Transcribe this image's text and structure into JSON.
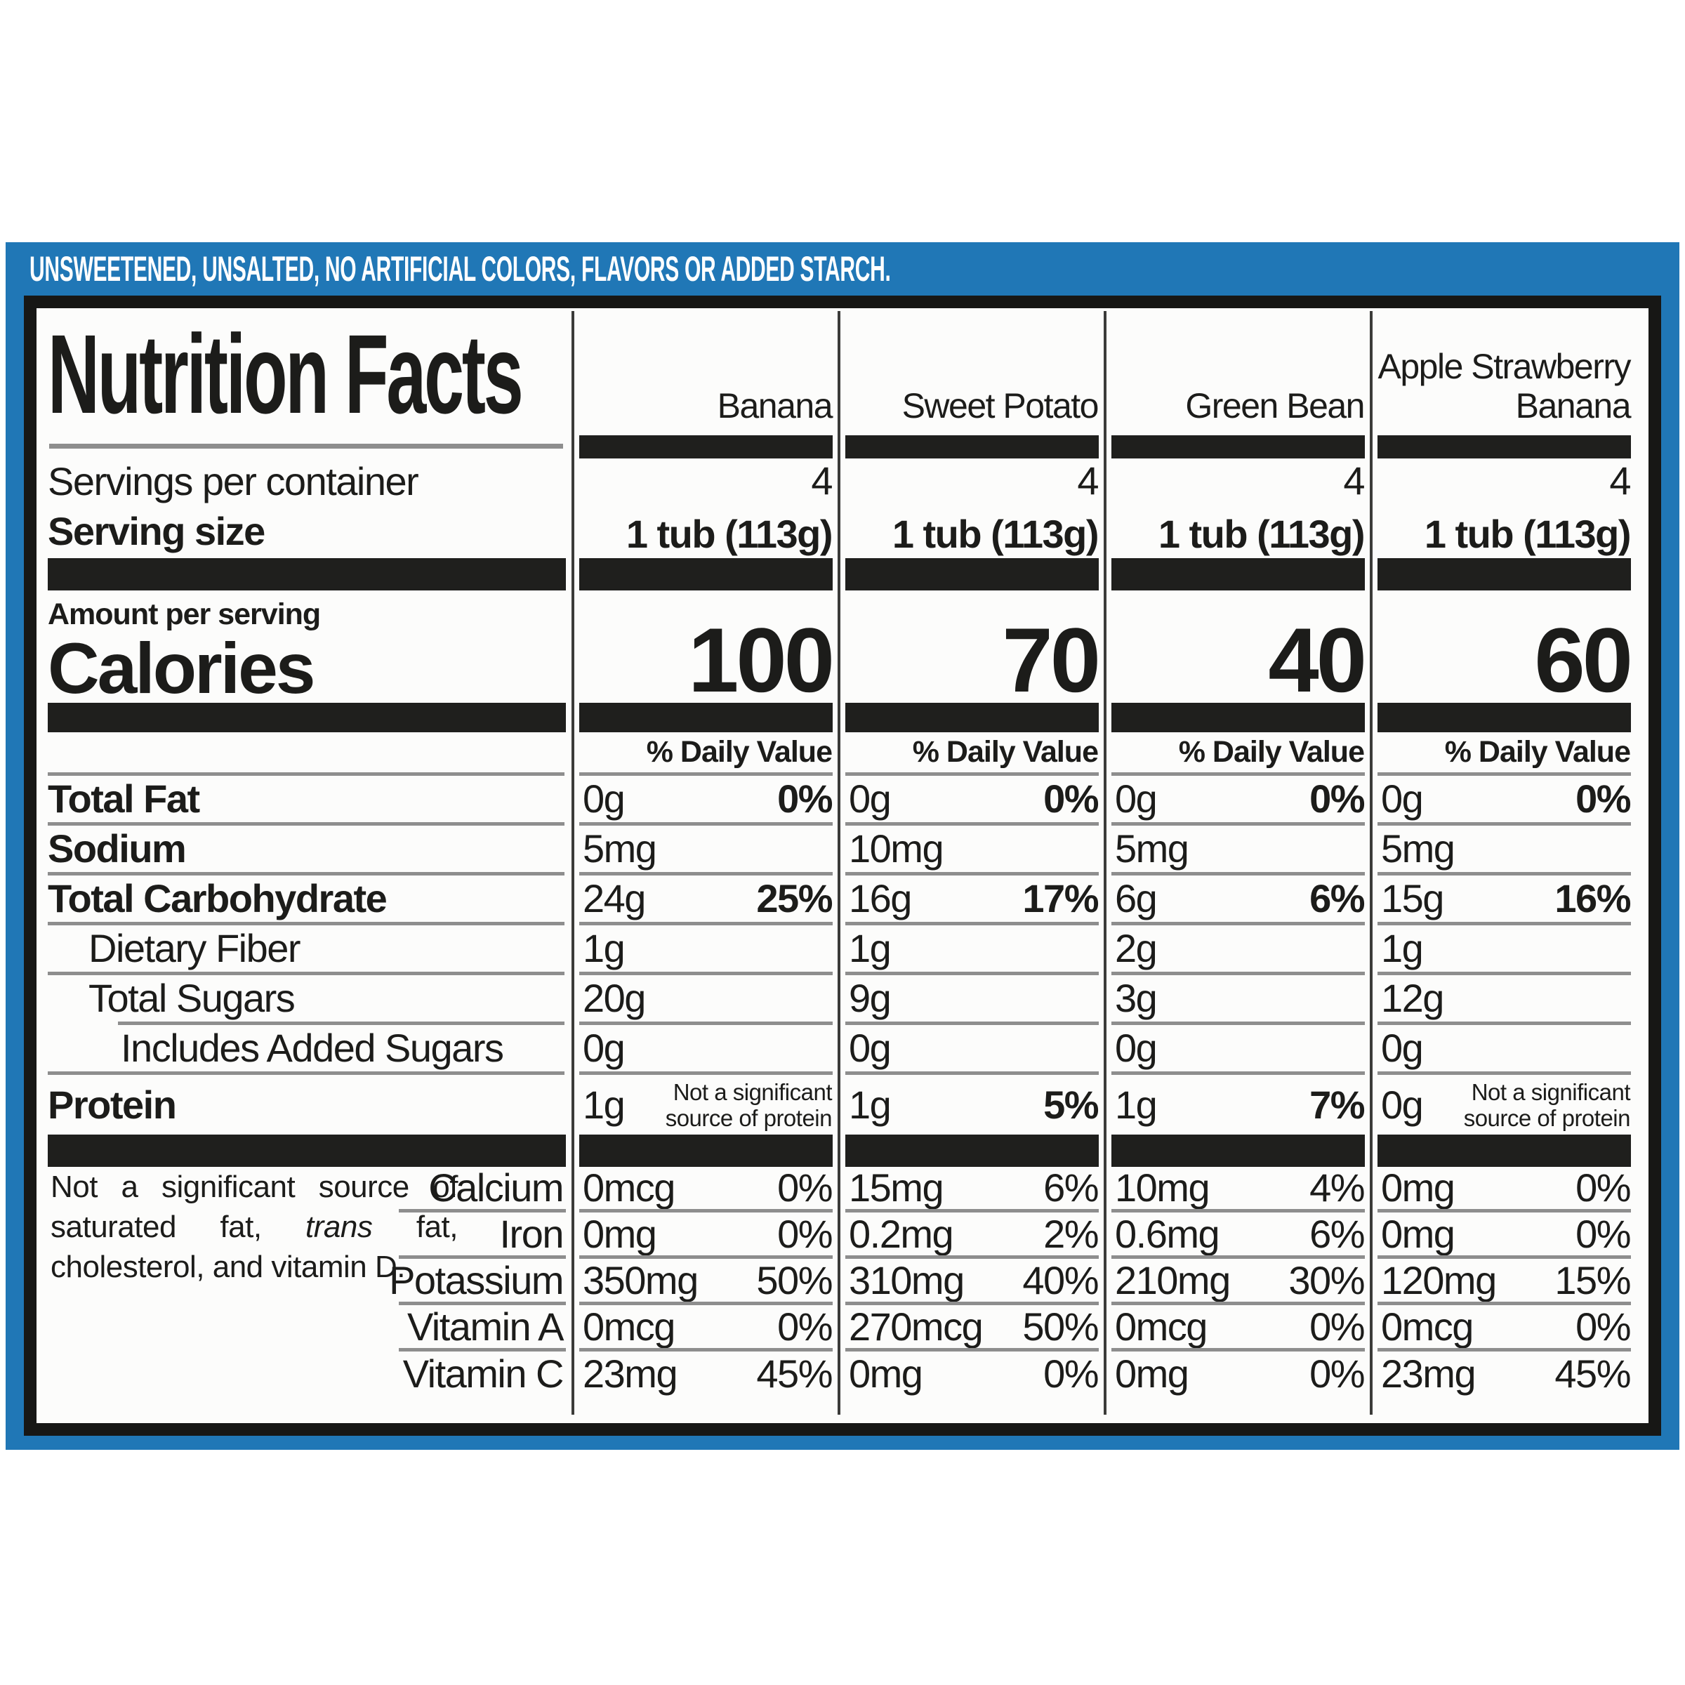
{
  "banner": {
    "text": "UNSWEETENED, UNSALTED, NO ARTIFICIAL COLORS, FLAVORS OR ADDED STARCH."
  },
  "title": "Nutrition Facts",
  "labels": {
    "servings_per_container": "Servings per container",
    "serving_size": "Serving size",
    "amount_per_serving": "Amount per serving",
    "calories": "Calories",
    "daily_value": "% Daily Value"
  },
  "columns": [
    {
      "name": "Banana",
      "servings": "4",
      "serving_size": "1 tub (113g)",
      "calories": "100"
    },
    {
      "name": "Sweet Potato",
      "servings": "4",
      "serving_size": "1 tub (113g)",
      "calories": "70"
    },
    {
      "name": "Green Bean",
      "servings": "4",
      "serving_size": "1 tub (113g)",
      "calories": "40"
    },
    {
      "name": "Apple Strawberry\nBanana",
      "servings": "4",
      "serving_size": "1 tub (113g)",
      "calories": "60"
    }
  ],
  "nutrients": [
    {
      "label": "Total Fat",
      "bold": true,
      "indent": 0,
      "hr_indent": false,
      "cells": [
        {
          "v": "0g",
          "p": "0%"
        },
        {
          "v": "0g",
          "p": "0%"
        },
        {
          "v": "0g",
          "p": "0%"
        },
        {
          "v": "0g",
          "p": "0%"
        }
      ]
    },
    {
      "label": "Sodium",
      "bold": true,
      "indent": 0,
      "hr_indent": false,
      "cells": [
        {
          "v": "5mg"
        },
        {
          "v": "10mg"
        },
        {
          "v": "5mg"
        },
        {
          "v": "5mg"
        }
      ]
    },
    {
      "label": "Total Carbohydrate",
      "bold": true,
      "indent": 0,
      "hr_indent": false,
      "cells": [
        {
          "v": "24g",
          "p": "25%"
        },
        {
          "v": "16g",
          "p": "17%"
        },
        {
          "v": "6g",
          "p": "6%"
        },
        {
          "v": "15g",
          "p": "16%"
        }
      ]
    },
    {
      "label": "Dietary Fiber",
      "bold": false,
      "indent": 1,
      "hr_indent": false,
      "cells": [
        {
          "v": "1g"
        },
        {
          "v": "1g"
        },
        {
          "v": "2g"
        },
        {
          "v": "1g"
        }
      ]
    },
    {
      "label": "Total Sugars",
      "bold": false,
      "indent": 1,
      "hr_indent": true,
      "cells": [
        {
          "v": "20g"
        },
        {
          "v": "9g"
        },
        {
          "v": "3g"
        },
        {
          "v": "12g"
        }
      ]
    },
    {
      "label": "Includes Added Sugars",
      "bold": false,
      "indent": 2,
      "hr_indent": false,
      "cells": [
        {
          "v": "0g"
        },
        {
          "v": "0g"
        },
        {
          "v": "0g"
        },
        {
          "v": "0g"
        }
      ]
    },
    {
      "label": "Protein",
      "bold": true,
      "indent": 0,
      "hr_indent": false,
      "cells": [
        {
          "v": "1g",
          "note": true
        },
        {
          "v": "1g",
          "p": "5%"
        },
        {
          "v": "1g",
          "p": "7%"
        },
        {
          "v": "0g",
          "note": true
        }
      ]
    }
  ],
  "protein_note": "Not a significant\nsource of protein",
  "footnote": {
    "pre": "Not a significant source of saturated fat, ",
    "italic": "trans",
    "post": " fat, cholesterol, and vitamin D."
  },
  "minerals": [
    {
      "label": "Calcium",
      "cells": [
        {
          "v": "0mcg",
          "p": "0%"
        },
        {
          "v": "15mg",
          "p": "6%"
        },
        {
          "v": "10mg",
          "p": "4%"
        },
        {
          "v": "0mg",
          "p": "0%"
        }
      ]
    },
    {
      "label": "Iron",
      "cells": [
        {
          "v": "0mg",
          "p": "0%"
        },
        {
          "v": "0.2mg",
          "p": "2%"
        },
        {
          "v": "0.6mg",
          "p": "6%"
        },
        {
          "v": "0mg",
          "p": "0%"
        }
      ]
    },
    {
      "label": "Potassium",
      "cells": [
        {
          "v": "350mg",
          "p": "50%"
        },
        {
          "v": "310mg",
          "p": "40%"
        },
        {
          "v": "210mg",
          "p": "30%"
        },
        {
          "v": "120mg",
          "p": "15%"
        }
      ]
    },
    {
      "label": "Vitamin A",
      "cells": [
        {
          "v": "0mcg",
          "p": "0%"
        },
        {
          "v": "270mcg",
          "p": "50%"
        },
        {
          "v": "0mcg",
          "p": "0%"
        },
        {
          "v": "0mcg",
          "p": "0%"
        }
      ]
    },
    {
      "label": "Vitamin C",
      "cells": [
        {
          "v": "23mg",
          "p": "45%"
        },
        {
          "v": "0mg",
          "p": "0%"
        },
        {
          "v": "0mg",
          "p": "0%"
        },
        {
          "v": "23mg",
          "p": "45%"
        }
      ]
    }
  ],
  "colors": {
    "blue": "#2077b6",
    "bar": "#1f1f1d",
    "hairline": "#8e8e8e",
    "border": "#171715",
    "text": "#1c1c1a"
  }
}
